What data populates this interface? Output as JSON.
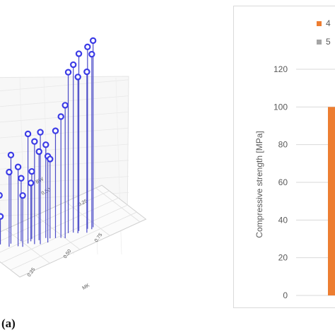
{
  "panel_label": "(a)",
  "chart_data": [
    {
      "type": "scatter",
      "projection": "3d",
      "title": "",
      "axes": {
        "mk": {
          "label": "MK",
          "ticks": [
            "0.25",
            "0.50",
            "0.75"
          ]
        },
        "bw": {
          "label": "BW",
          "ticks": [
            "0.50",
            "0.25"
          ]
        }
      },
      "grid": true,
      "marker_color": "#3b3be6",
      "stem_color": "#4a4ac8",
      "points": [
        {
          "mk": 0.06,
          "bw": 0.95,
          "z": 18
        },
        {
          "mk": 0.12,
          "bw": 0.92,
          "z": 12
        },
        {
          "mk": 0.02,
          "bw": 0.85,
          "z": 9
        },
        {
          "mk": 0.15,
          "bw": 0.78,
          "z": 32
        },
        {
          "mk": 0.18,
          "bw": 0.83,
          "z": 38
        },
        {
          "mk": 0.2,
          "bw": 0.7,
          "z": 34
        },
        {
          "mk": 0.25,
          "bw": 0.78,
          "z": 27
        },
        {
          "mk": 0.22,
          "bw": 0.64,
          "z": 22
        },
        {
          "mk": 0.3,
          "bw": 0.68,
          "z": 25
        },
        {
          "mk": 0.32,
          "bw": 0.72,
          "z": 29
        },
        {
          "mk": 0.35,
          "bw": 0.62,
          "z": 38
        },
        {
          "mk": 0.3,
          "bw": 0.58,
          "z": 44
        },
        {
          "mk": 0.33,
          "bw": 0.52,
          "z": 48
        },
        {
          "mk": 0.4,
          "bw": 0.6,
          "z": 40
        },
        {
          "mk": 0.42,
          "bw": 0.55,
          "z": 34
        },
        {
          "mk": 0.38,
          "bw": 0.48,
          "z": 37
        },
        {
          "mk": 0.45,
          "bw": 0.5,
          "z": 46
        },
        {
          "mk": 0.48,
          "bw": 0.45,
          "z": 52
        },
        {
          "mk": 0.5,
          "bw": 0.4,
          "z": 57
        },
        {
          "mk": 0.55,
          "bw": 0.48,
          "z": 69
        },
        {
          "mk": 0.58,
          "bw": 0.44,
          "z": 72
        },
        {
          "mk": 0.6,
          "bw": 0.38,
          "z": 67
        },
        {
          "mk": 0.62,
          "bw": 0.42,
          "z": 76
        },
        {
          "mk": 0.68,
          "bw": 0.38,
          "z": 78
        },
        {
          "mk": 0.72,
          "bw": 0.36,
          "z": 80
        },
        {
          "mk": 0.7,
          "bw": 0.33,
          "z": 75
        },
        {
          "mk": 0.65,
          "bw": 0.3,
          "z": 69
        },
        {
          "mk": 0.1,
          "bw": 0.88,
          "z": 22
        },
        {
          "mk": 0.27,
          "bw": 0.66,
          "z": 47
        }
      ]
    },
    {
      "type": "bar",
      "ylabel": "Compressive strength [MPa]",
      "ylim": [
        0,
        120
      ],
      "yticks": [
        0,
        20,
        40,
        60,
        80,
        100,
        120
      ],
      "grid": true,
      "legend_position": "top-right",
      "series": [
        {
          "name": "4",
          "color": "#ed7d31",
          "values": [
            100
          ]
        },
        {
          "name": "5",
          "color": "#a5a5a5",
          "values": []
        }
      ]
    }
  ]
}
